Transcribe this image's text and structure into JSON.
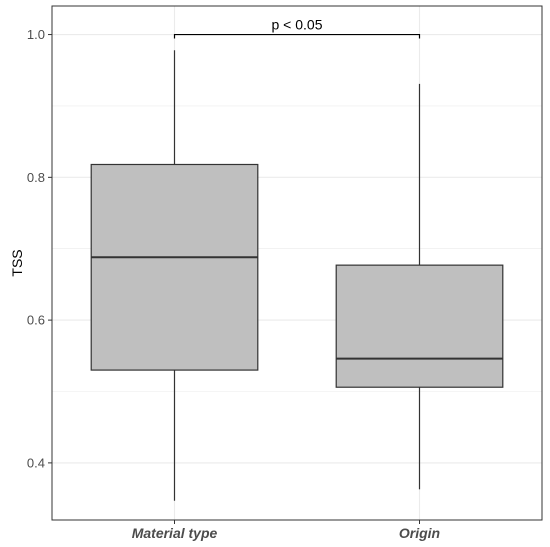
{
  "chart_data": {
    "type": "boxplot",
    "ylabel": "TSS",
    "xlabel": "",
    "ylim": [
      0.32,
      1.04
    ],
    "yticks": [
      "0.4",
      "0.6",
      "0.8",
      "1.0"
    ],
    "grid": true,
    "categories": [
      "Material type",
      "Origin"
    ],
    "boxes": [
      {
        "category": "Material type",
        "min": 0.347,
        "q1": 0.53,
        "median": 0.688,
        "q3": 0.818,
        "max": 0.978
      },
      {
        "category": "Origin",
        "min": 0.363,
        "q1": 0.506,
        "median": 0.546,
        "q3": 0.677,
        "max": 0.931
      }
    ],
    "annotation": {
      "text": "p < 0.05",
      "from": "Material type",
      "to": "Origin",
      "y": 1.0
    },
    "colors": {
      "box_fill": "#bfbfbf",
      "box_stroke": "#333333",
      "grid": "#ebebeb",
      "panel_border": "#333333"
    }
  }
}
